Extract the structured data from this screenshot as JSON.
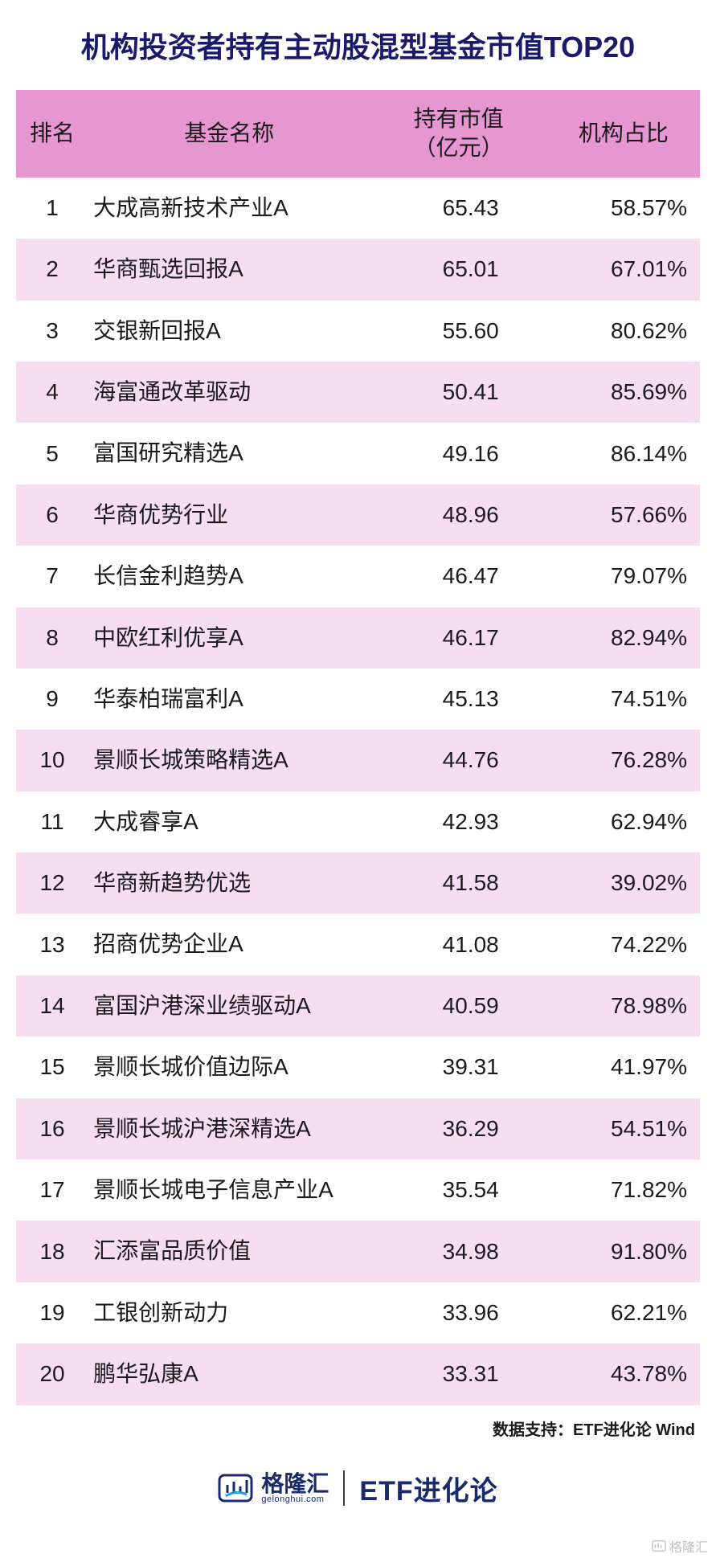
{
  "title": "机构投资者持有主动股混型基金市值TOP20",
  "table": {
    "type": "table",
    "columns": {
      "rank": "排名",
      "name": "基金名称",
      "value": "持有市值\n（亿元）",
      "ratio": "机构占比"
    },
    "header_bg": "#e696d0",
    "row_even_bg": "#f6def0",
    "row_odd_bg": "#ffffff",
    "text_color": "#1a1a1a",
    "title_color": "#1a1a6a",
    "font_size_header": 28,
    "font_size_cell": 28,
    "font_size_title": 36,
    "rows": [
      {
        "rank": "1",
        "name": "大成高新技术产业A",
        "value": "65.43",
        "ratio": "58.57%"
      },
      {
        "rank": "2",
        "name": "华商甄选回报A",
        "value": "65.01",
        "ratio": "67.01%"
      },
      {
        "rank": "3",
        "name": "交银新回报A",
        "value": "55.60",
        "ratio": "80.62%"
      },
      {
        "rank": "4",
        "name": "海富通改革驱动",
        "value": "50.41",
        "ratio": "85.69%"
      },
      {
        "rank": "5",
        "name": "富国研究精选A",
        "value": "49.16",
        "ratio": "86.14%"
      },
      {
        "rank": "6",
        "name": "华商优势行业",
        "value": "48.96",
        "ratio": "57.66%"
      },
      {
        "rank": "7",
        "name": "长信金利趋势A",
        "value": "46.47",
        "ratio": "79.07%"
      },
      {
        "rank": "8",
        "name": "中欧红利优享A",
        "value": "46.17",
        "ratio": "82.94%"
      },
      {
        "rank": "9",
        "name": "华泰柏瑞富利A",
        "value": "45.13",
        "ratio": "74.51%"
      },
      {
        "rank": "10",
        "name": "景顺长城策略精选A",
        "value": "44.76",
        "ratio": "76.28%"
      },
      {
        "rank": "11",
        "name": "大成睿享A",
        "value": "42.93",
        "ratio": "62.94%"
      },
      {
        "rank": "12",
        "name": "华商新趋势优选",
        "value": "41.58",
        "ratio": "39.02%"
      },
      {
        "rank": "13",
        "name": "招商优势企业A",
        "value": "41.08",
        "ratio": "74.22%"
      },
      {
        "rank": "14",
        "name": "富国沪港深业绩驱动A",
        "value": "40.59",
        "ratio": "78.98%"
      },
      {
        "rank": "15",
        "name": "景顺长城价值边际A",
        "value": "39.31",
        "ratio": "41.97%"
      },
      {
        "rank": "16",
        "name": "景顺长城沪港深精选A",
        "value": "36.29",
        "ratio": "54.51%"
      },
      {
        "rank": "17",
        "name": "景顺长城电子信息产业A",
        "value": "35.54",
        "ratio": "71.82%"
      },
      {
        "rank": "18",
        "name": "汇添富品质价值",
        "value": "34.98",
        "ratio": "91.80%"
      },
      {
        "rank": "19",
        "name": "工银创新动力",
        "value": "33.96",
        "ratio": "62.21%"
      },
      {
        "rank": "20",
        "name": "鹏华弘康A",
        "value": "33.31",
        "ratio": "43.78%"
      }
    ]
  },
  "credit": "数据支持：ETF进化论 Wind",
  "footer": {
    "brand_left_cn": "格隆汇",
    "brand_left_en": "gelonghui.com",
    "brand_right": "ETF进化论",
    "brand_color": "#1b2a6b"
  },
  "watermark": "格隆汇"
}
